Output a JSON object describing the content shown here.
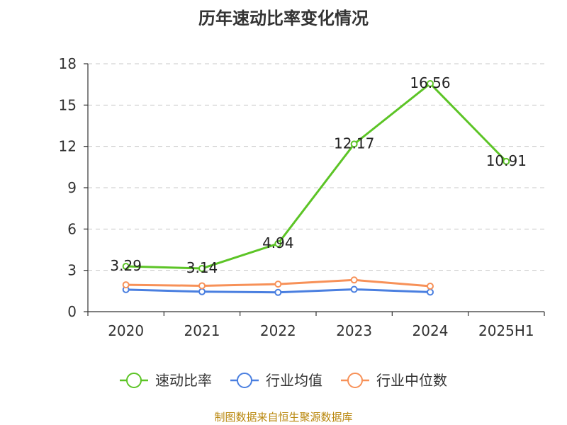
{
  "source_note": "制图数据来自恒生聚源数据库",
  "chart_data": {
    "type": "line",
    "title": "历年速动比率变化情况",
    "xlabel": "",
    "ylabel": "",
    "categories": [
      "2020",
      "2021",
      "2022",
      "2023",
      "2024",
      "2025H1"
    ],
    "ylim": [
      0,
      18
    ],
    "yticks": [
      0,
      3,
      6,
      9,
      12,
      15,
      18
    ],
    "grid": true,
    "legend_position": "bottom",
    "series": [
      {
        "name": "速动比率",
        "color": "#5cc426",
        "values": [
          3.29,
          3.14,
          4.94,
          12.17,
          16.56,
          10.91
        ],
        "labels": [
          "3.29",
          "3.14",
          "4.94",
          "12.17",
          "16.56",
          "10.91"
        ]
      },
      {
        "name": "行业均值",
        "color": "#4a7fe0",
        "values": [
          1.6,
          1.45,
          1.4,
          1.62,
          1.42,
          null
        ]
      },
      {
        "name": "行业中位数",
        "color": "#f79158",
        "values": [
          1.95,
          1.88,
          2.0,
          2.3,
          1.85,
          null
        ]
      }
    ]
  }
}
